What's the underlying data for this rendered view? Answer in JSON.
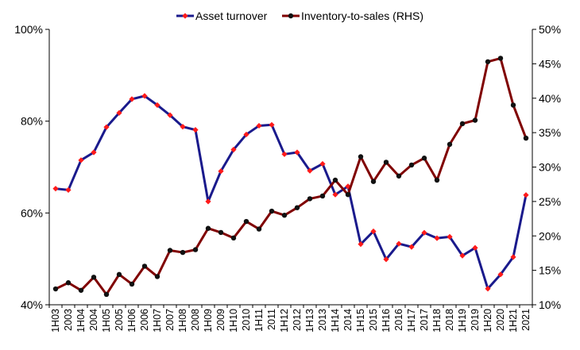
{
  "chart_data": {
    "type": "line",
    "title": "",
    "xlabel": "",
    "ylabel": "",
    "y2label": "",
    "grid": false,
    "legend_position": "top-center",
    "categories": [
      "1H03",
      "2003",
      "1H04",
      "2004",
      "1H05",
      "2005",
      "1H06",
      "2006",
      "1H07",
      "2007",
      "1H08",
      "2008",
      "1H09",
      "2009",
      "1H10",
      "2010",
      "1H11",
      "2011",
      "1H12",
      "2012",
      "1H13",
      "2013",
      "1H14",
      "2014",
      "1H15",
      "2015",
      "1H16",
      "2016",
      "1H17",
      "2017",
      "1H18",
      "2018",
      "1H19",
      "2019",
      "1H20",
      "2020",
      "1H21",
      "2021"
    ],
    "left_axis": {
      "min": 40,
      "max": 100,
      "ticks": [
        40,
        60,
        80,
        100
      ],
      "tick_labels": [
        "40%",
        "60%",
        "80%",
        "100%"
      ]
    },
    "right_axis": {
      "min": 10,
      "max": 50,
      "ticks": [
        10,
        15,
        20,
        25,
        30,
        35,
        40,
        45,
        50
      ],
      "tick_labels": [
        "10%",
        "15%",
        "20%",
        "25%",
        "30%",
        "35%",
        "40%",
        "45%",
        "50%"
      ]
    },
    "series": [
      {
        "name": "Asset turnover",
        "axis": "left",
        "line_color": "#1a1a8c",
        "marker_color": "#ff1a1a",
        "marker": "diamond",
        "values": [
          65.3,
          65.0,
          71.5,
          73.2,
          78.7,
          81.8,
          84.8,
          85.5,
          83.5,
          81.3,
          78.8,
          78.1,
          62.5,
          69.1,
          73.8,
          77.1,
          79.0,
          79.2,
          72.8,
          73.2,
          69.2,
          70.7,
          64.0,
          65.8,
          53.2,
          56.0,
          49.9,
          53.3,
          52.6,
          55.7,
          54.5,
          54.8,
          50.7,
          52.4,
          43.5,
          46.6,
          50.4,
          63.9
        ]
      },
      {
        "name": "Inventory-to-sales (RHS)",
        "axis": "right",
        "line_color": "#800000",
        "marker_color": "#111111",
        "marker": "circle",
        "values": [
          12.3,
          13.2,
          12.1,
          14.0,
          11.5,
          14.4,
          13.0,
          15.6,
          14.1,
          17.9,
          17.6,
          18.0,
          21.1,
          20.5,
          19.7,
          22.1,
          21.0,
          23.6,
          23.0,
          24.1,
          25.4,
          25.8,
          28.1,
          26.0,
          31.5,
          27.9,
          30.7,
          28.7,
          30.3,
          31.3,
          28.1,
          33.3,
          36.3,
          36.8,
          45.3,
          45.8,
          39.0,
          34.2
        ]
      }
    ]
  }
}
